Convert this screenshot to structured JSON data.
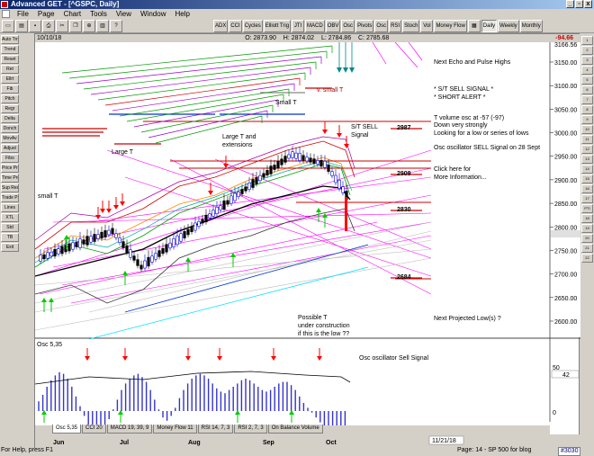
{
  "window": {
    "title": "Advanced GET - [^GSPC, Daily]",
    "minimize": "_",
    "restore": "▫",
    "close": "x"
  },
  "menu": [
    "File",
    "Page",
    "Chart",
    "Tools",
    "View",
    "Window",
    "Help"
  ],
  "toolbar": {
    "buttons": [
      "ADX",
      "CCI",
      "Cycles",
      "Elliott Trig",
      "JTI",
      "MACD",
      "OBV",
      "Osc",
      "Pivots",
      "Osc",
      "RSI",
      "Stoch",
      "Vol",
      "Money Flow"
    ],
    "periods": [
      "Daily",
      "Weekly",
      "Monthly"
    ],
    "active_period": "Daily"
  },
  "left_tools": [
    "Auto Trnd",
    "Trend",
    "Reset",
    "Ret",
    "Ellrt",
    "Fib",
    "Pitch",
    "Regr",
    "Delta",
    "Donch",
    "MovAv",
    "Adjust",
    "Fibo",
    "Price Proj",
    "Time Proj",
    "Sup Res",
    "Trade Profile",
    "Lines",
    "XTL",
    "Std",
    "TB",
    "Exit"
  ],
  "right_tools": [
    "1",
    "2",
    "3",
    "4",
    "5",
    "6",
    "7",
    "8",
    "9",
    "10",
    "11",
    "12",
    "13",
    "14",
    "15",
    "16",
    "17",
    "PTI",
    "18",
    "19",
    "20",
    "21",
    "22"
  ],
  "header": {
    "date": "10/10/18",
    "open": "O: 2873.90",
    "high": "H: 2874.02",
    "low": "L: 2784.86",
    "close": "C: 2785.68",
    "change": "-94.66"
  },
  "price_axis": {
    "labels": [
      "3150.00",
      "3100.00",
      "3050.00",
      "3000.00",
      "2950.00",
      "2900.00",
      "2850.00",
      "2800.00",
      "2750.00",
      "2700.00",
      "2650.00",
      "2600.00"
    ],
    "current": "2785.68",
    "top_partial": "3166.56"
  },
  "annotations": {
    "next_echo": "Next Echo and Pulse Highs",
    "sell_signal": "* S/T SELL SIGNAL *",
    "short_alert": "* SHORT ALERT *",
    "t_volume_1": "T volume osc at -57 (-97)",
    "t_volume_2": "Down very strongly",
    "t_volume_3": "Looking for a low or series of lows",
    "osc_sell": "Osc oscillator SELL Signal on 28 Sept",
    "click_1": "Click here for",
    "click_2": "More Information...",
    "next_low": "Next Projected Low(s) ?",
    "possible_1": "Possible T",
    "possible_2": "under construction",
    "possible_3": "if this is the low ??",
    "st_sell_1": "S/T SELL",
    "st_sell_2": "Signal",
    "small_t_1": "Small T",
    "v_small_t": "v. small T",
    "large_t_ext_1": "Large T and",
    "large_t_ext_2": "extensions",
    "large_t": "Large T",
    "small_t_2": "small T",
    "lvl_2987": "2987",
    "lvl_2909": "2909",
    "lvl_2830": "2830",
    "lvl_2684": "2684"
  },
  "osc_panel": {
    "title": "Osc 5,35",
    "signal_text": "Osc oscillator Sell Signal",
    "axis": [
      "50",
      "42",
      "0"
    ]
  },
  "tabs": [
    "Osc 5,35",
    "CCI 20",
    "MACD 19, 39, 9",
    "Money Flow 11",
    "RSI 14, 7, 3",
    "RSI 2, 7, 3",
    "On Balance Volume"
  ],
  "time_axis": [
    "Jun",
    "Jul",
    "Aug",
    "Sep",
    "Oct"
  ],
  "projection_date": "11/21/18",
  "status": {
    "help": "For Help, press F1",
    "page": "Page: 14 - SP 500 for blog",
    "number": "#3030"
  },
  "colors": {
    "up_candle": "#0000cc",
    "down_candle": "#000000",
    "sell_arrow": "#ff0000",
    "buy_arrow": "#00cc00",
    "osc_bars": "#3333cc",
    "magenta_lines": "#ff00ff",
    "title_bar": "#0a246a"
  }
}
